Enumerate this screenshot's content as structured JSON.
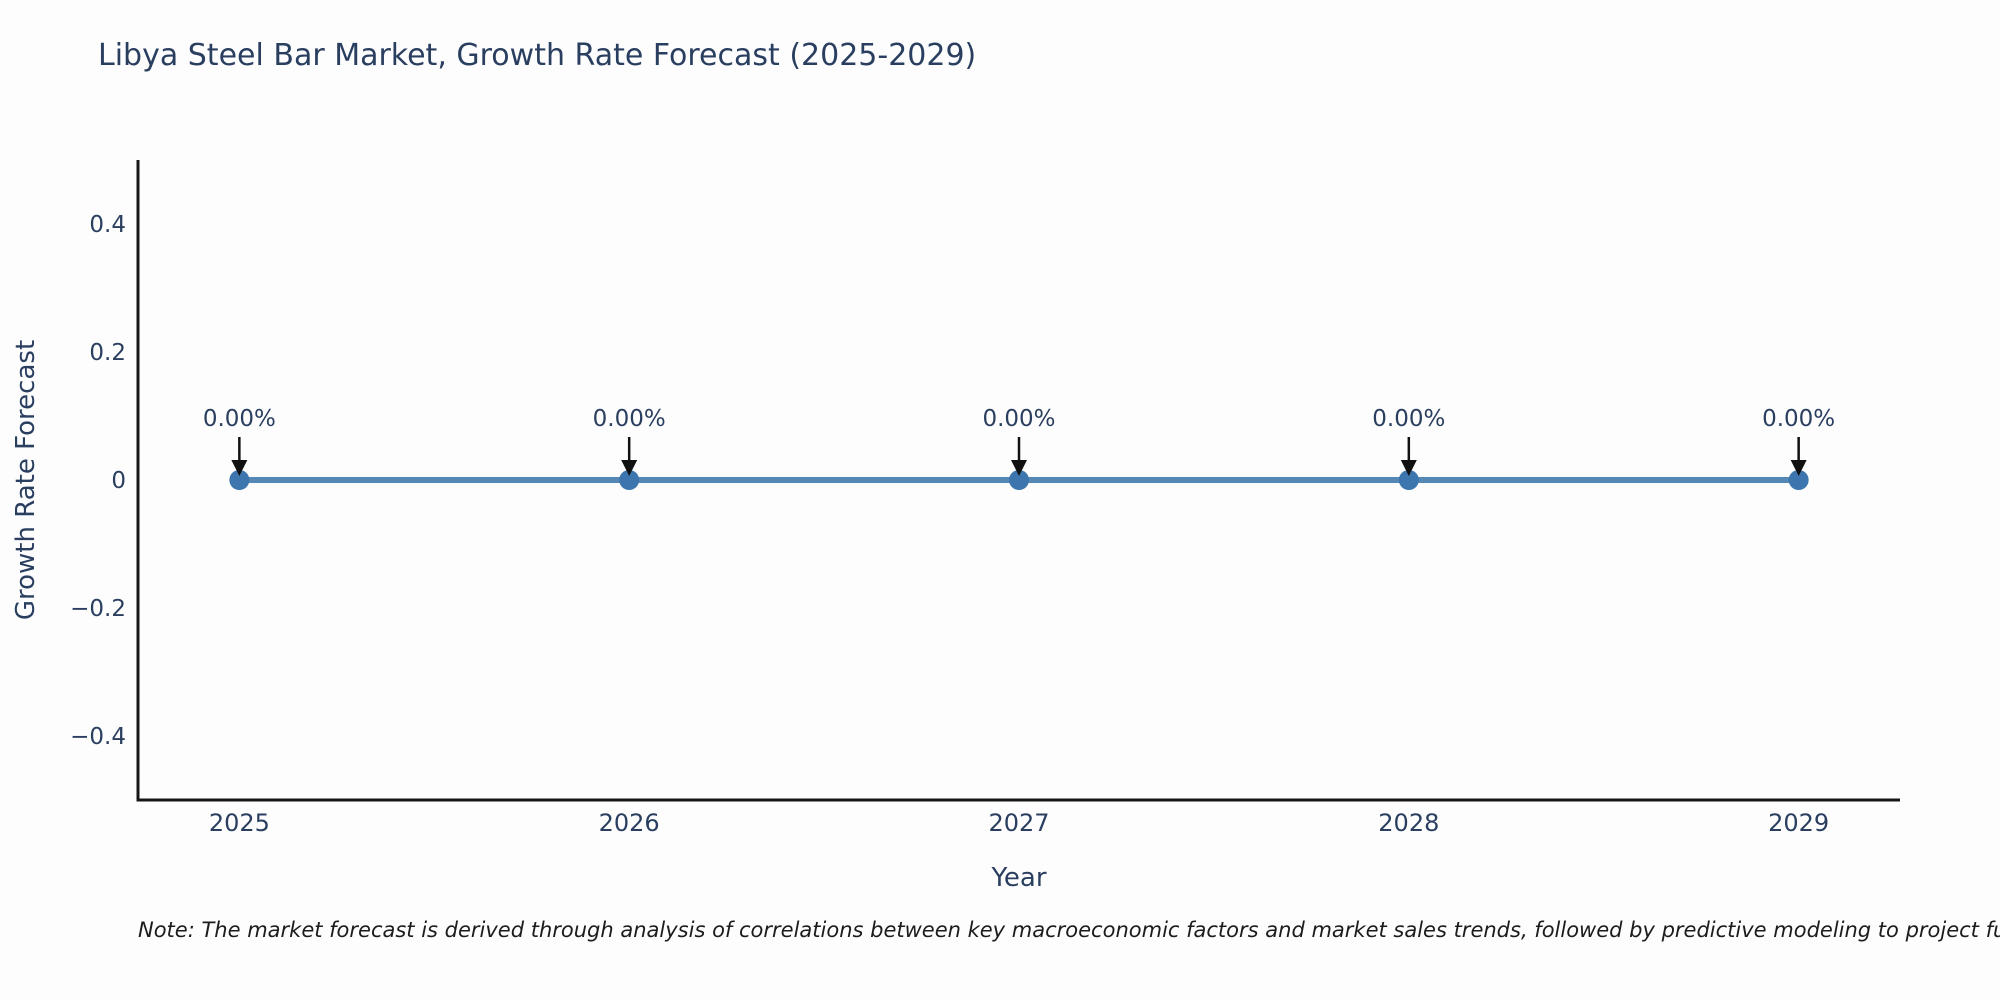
{
  "figure": {
    "title": "Libya Steel Bar Market, Growth Rate Forecast (2025-2029)",
    "note": "Note: The market forecast is derived through analysis of correlations between key macroeconomic factors and market sales trends, followed by predictive modeling to project future sales."
  },
  "chart_data": {
    "type": "line",
    "title": "Libya Steel Bar Market, Growth Rate Forecast (2025-2029)",
    "xlabel": "Year",
    "ylabel": "Growth Rate Forecast",
    "x": [
      2025,
      2026,
      2027,
      2028,
      2029
    ],
    "xtick_labels": [
      "2025",
      "2026",
      "2027",
      "2028",
      "2029"
    ],
    "series": [
      {
        "name": "Growth Rate Forecast",
        "values": [
          0,
          0,
          0,
          0,
          0
        ],
        "point_labels": [
          "0.00%",
          "0.00%",
          "0.00%",
          "0.00%",
          "0.00%"
        ]
      }
    ],
    "yticks": [
      0.4,
      0.2,
      0,
      -0.2,
      -0.4
    ],
    "ytick_labels": [
      "0.4",
      "0.2",
      "0",
      "−0.2",
      "−0.4"
    ],
    "ylim": [
      -0.5,
      0.5
    ],
    "xlim": [
      2024.74,
      2029.26
    ],
    "grid": false,
    "legend": false,
    "annotation_style": "percent label with downward black arrow above each data point"
  },
  "colors": {
    "background": "#fdfdfe",
    "series_line": "#5588b4",
    "marker_fill": "#3d76ae",
    "axis_line": "#161616",
    "text_label": "#2a3f5f",
    "annotation_arrow": "#111111",
    "note_text": "#1c1c1c"
  }
}
